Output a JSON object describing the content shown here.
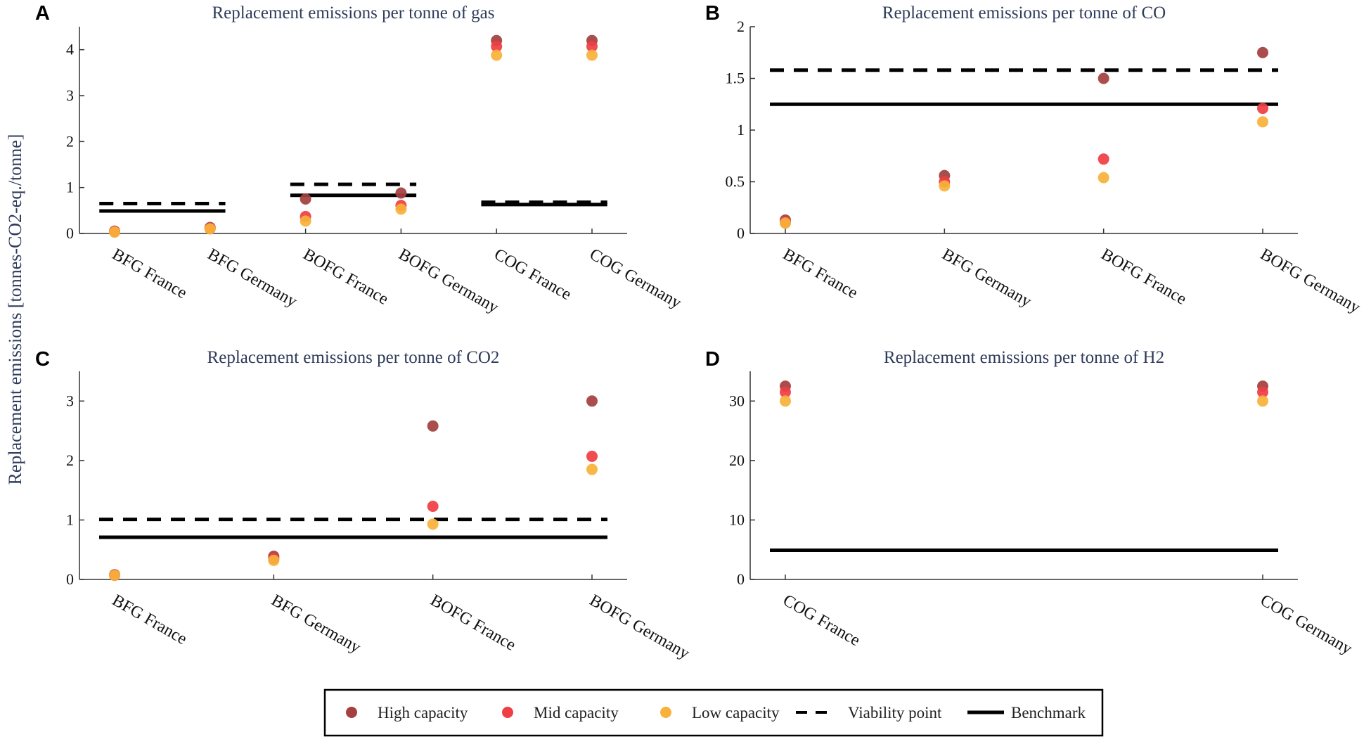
{
  "figure": {
    "ylabel": "Replacement emissions [tonnes-CO2-eq./tonne]",
    "legend": [
      {
        "key": "high",
        "label": "High capacity",
        "kind": "marker"
      },
      {
        "key": "mid",
        "label": "Mid capacity",
        "kind": "marker"
      },
      {
        "key": "low",
        "label": "Low capacity",
        "kind": "marker"
      },
      {
        "key": "viability",
        "label": "Viability point",
        "kind": "dashed"
      },
      {
        "key": "benchmark",
        "label": "Benchmark",
        "kind": "solid"
      }
    ]
  },
  "colors": {
    "high": "#a4403f",
    "mid": "#ef3e44",
    "low": "#f8b23a",
    "line": "#000000",
    "axis": "#333333",
    "title": "#2e3b5a"
  },
  "chart_data": [
    {
      "panel": "A",
      "type": "scatter",
      "title": "Replacement emissions per tonne of gas",
      "xlabel": "",
      "ylabel": "Replacement emissions [tonnes-CO2-eq./tonne]",
      "ylim": [
        0,
        4.5
      ],
      "yticks": [
        0,
        1,
        2,
        3,
        4
      ],
      "categories": [
        "BFG France",
        "BFG Germany",
        "BOFG France",
        "BOFG Germany",
        "COG France",
        "COG Germany"
      ],
      "series": [
        {
          "name": "High capacity",
          "key": "high",
          "values": [
            0.05,
            0.13,
            0.75,
            0.88,
            4.2,
            4.2
          ]
        },
        {
          "name": "Mid capacity",
          "key": "mid",
          "values": [
            0.04,
            0.11,
            0.37,
            0.61,
            4.07,
            4.07
          ]
        },
        {
          "name": "Low capacity",
          "key": "low",
          "values": [
            0.03,
            0.1,
            0.27,
            0.53,
            3.88,
            3.88
          ]
        }
      ],
      "benchmark": [
        {
          "from": 0,
          "to": 1,
          "value": 0.49
        },
        {
          "from": 2,
          "to": 3,
          "value": 0.83
        },
        {
          "from": 4,
          "to": 5,
          "value": 0.63
        }
      ],
      "viability": [
        {
          "from": 0,
          "to": 1,
          "value": 0.65
        },
        {
          "from": 2,
          "to": 3,
          "value": 1.07
        },
        {
          "from": 4,
          "to": 5,
          "value": 0.68
        }
      ]
    },
    {
      "panel": "B",
      "type": "scatter",
      "title": "Replacement emissions per tonne of CO",
      "xlabel": "",
      "ylabel": "",
      "ylim": [
        0,
        2
      ],
      "yticks": [
        0,
        0.5,
        1,
        1.5,
        2
      ],
      "categories": [
        "BFG France",
        "BFG Germany",
        "BOFG France",
        "BOFG Germany"
      ],
      "series": [
        {
          "name": "High capacity",
          "key": "high",
          "values": [
            0.13,
            0.56,
            1.5,
            1.75
          ]
        },
        {
          "name": "Mid capacity",
          "key": "mid",
          "values": [
            0.11,
            0.5,
            0.72,
            1.21
          ]
        },
        {
          "name": "Low capacity",
          "key": "low",
          "values": [
            0.1,
            0.46,
            0.54,
            1.08
          ]
        }
      ],
      "benchmark": [
        {
          "from": 0,
          "to": 3,
          "value": 1.25
        }
      ],
      "viability": [
        {
          "from": 0,
          "to": 3,
          "value": 1.58
        }
      ]
    },
    {
      "panel": "C",
      "type": "scatter",
      "title": "Replacement emissions per tonne of CO2",
      "xlabel": "",
      "ylabel": "",
      "ylim": [
        0,
        3.5
      ],
      "yticks": [
        0,
        1,
        2,
        3
      ],
      "categories": [
        "BFG France",
        "BFG Germany",
        "BOFG France",
        "BOFG Germany"
      ],
      "series": [
        {
          "name": "High capacity",
          "key": "high",
          "values": [
            0.08,
            0.39,
            2.58,
            3.0
          ]
        },
        {
          "name": "Mid capacity",
          "key": "mid",
          "values": [
            0.07,
            0.35,
            1.23,
            2.07
          ]
        },
        {
          "name": "Low capacity",
          "key": "low",
          "values": [
            0.07,
            0.32,
            0.93,
            1.85
          ]
        }
      ],
      "benchmark": [
        {
          "from": 0,
          "to": 3,
          "value": 0.71
        }
      ],
      "viability": [
        {
          "from": 0,
          "to": 3,
          "value": 1.01
        }
      ]
    },
    {
      "panel": "D",
      "type": "scatter",
      "title": "Replacement emissions per tonne of H2",
      "xlabel": "",
      "ylabel": "",
      "ylim": [
        0,
        35
      ],
      "yticks": [
        0,
        10,
        20,
        30
      ],
      "categories": [
        "COG France",
        "COG Germany"
      ],
      "series": [
        {
          "name": "High capacity",
          "key": "high",
          "values": [
            32.5,
            32.5
          ]
        },
        {
          "name": "Mid capacity",
          "key": "mid",
          "values": [
            31.5,
            31.5
          ]
        },
        {
          "name": "Low capacity",
          "key": "low",
          "values": [
            30.0,
            30.0
          ]
        }
      ],
      "benchmark": [
        {
          "from": 0,
          "to": 1,
          "value": 4.9
        }
      ],
      "viability": []
    }
  ]
}
